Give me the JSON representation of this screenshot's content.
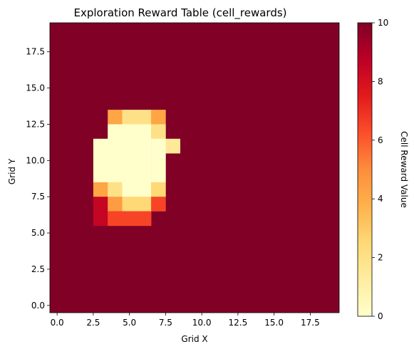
{
  "chart_data": {
    "type": "heatmap",
    "title": "Exploration Reward Table (cell_rewards)",
    "xlabel": "Grid X",
    "ylabel": "Grid Y",
    "xlim": [
      -0.5,
      19.5
    ],
    "ylim": [
      -0.5,
      19.5
    ],
    "x_ticks": [
      0.0,
      2.5,
      5.0,
      7.5,
      10.0,
      12.5,
      15.0,
      17.5
    ],
    "x_tick_labels": [
      "0.0",
      "2.5",
      "5.0",
      "7.5",
      "10.0",
      "12.5",
      "15.0",
      "17.5"
    ],
    "y_ticks": [
      0.0,
      2.5,
      5.0,
      7.5,
      10.0,
      12.5,
      15.0,
      17.5
    ],
    "y_tick_labels": [
      "0.0",
      "2.5",
      "5.0",
      "7.5",
      "10.0",
      "12.5",
      "15.0",
      "17.5"
    ],
    "colormap": "YlOrRd",
    "colormap_stops": [
      "#ffffcc",
      "#ffeda0",
      "#fed976",
      "#feb24c",
      "#fd8d3c",
      "#fc4e2a",
      "#e31a1c",
      "#bd0026",
      "#800026"
    ],
    "vmin": 0,
    "vmax": 10,
    "background_value": 10,
    "colorbar": {
      "label": "Cell Reward Value",
      "ticks": [
        0,
        2,
        4,
        6,
        8,
        10
      ],
      "tick_labels": [
        "0",
        "2",
        "4",
        "6",
        "8",
        "10"
      ]
    },
    "cells": [
      {
        "x": 4,
        "y": 13,
        "value": 4.2
      },
      {
        "x": 5,
        "y": 13,
        "value": 2.0
      },
      {
        "x": 6,
        "y": 13,
        "value": 2.0
      },
      {
        "x": 7,
        "y": 13,
        "value": 4.2
      },
      {
        "x": 4,
        "y": 12,
        "value": 0
      },
      {
        "x": 5,
        "y": 12,
        "value": 0
      },
      {
        "x": 6,
        "y": 12,
        "value": 0
      },
      {
        "x": 7,
        "y": 12,
        "value": 2.0
      },
      {
        "x": 3,
        "y": 11,
        "value": 0
      },
      {
        "x": 4,
        "y": 11,
        "value": 0
      },
      {
        "x": 5,
        "y": 11,
        "value": 0
      },
      {
        "x": 6,
        "y": 11,
        "value": 0
      },
      {
        "x": 7,
        "y": 11,
        "value": 0
      },
      {
        "x": 8,
        "y": 11,
        "value": 1.5
      },
      {
        "x": 3,
        "y": 10,
        "value": 0
      },
      {
        "x": 4,
        "y": 10,
        "value": 0
      },
      {
        "x": 5,
        "y": 10,
        "value": 0
      },
      {
        "x": 6,
        "y": 10,
        "value": 0
      },
      {
        "x": 7,
        "y": 10,
        "value": 0
      },
      {
        "x": 3,
        "y": 9,
        "value": 0
      },
      {
        "x": 4,
        "y": 9,
        "value": 0
      },
      {
        "x": 5,
        "y": 9,
        "value": 0
      },
      {
        "x": 6,
        "y": 9,
        "value": 0
      },
      {
        "x": 7,
        "y": 9,
        "value": 0
      },
      {
        "x": 3,
        "y": 8,
        "value": 4.2
      },
      {
        "x": 4,
        "y": 8,
        "value": 2.0
      },
      {
        "x": 5,
        "y": 8,
        "value": 0
      },
      {
        "x": 6,
        "y": 8,
        "value": 0
      },
      {
        "x": 7,
        "y": 8,
        "value": 2.5
      },
      {
        "x": 3,
        "y": 7,
        "value": 8.5
      },
      {
        "x": 4,
        "y": 7,
        "value": 4.5
      },
      {
        "x": 5,
        "y": 7,
        "value": 2.5
      },
      {
        "x": 6,
        "y": 7,
        "value": 2.5
      },
      {
        "x": 7,
        "y": 7,
        "value": 6.5
      },
      {
        "x": 3,
        "y": 6,
        "value": 8.5
      },
      {
        "x": 4,
        "y": 6,
        "value": 6.5
      },
      {
        "x": 5,
        "y": 6,
        "value": 6.5
      },
      {
        "x": 6,
        "y": 6,
        "value": 6.5
      }
    ],
    "grid": false,
    "legend": "none"
  }
}
